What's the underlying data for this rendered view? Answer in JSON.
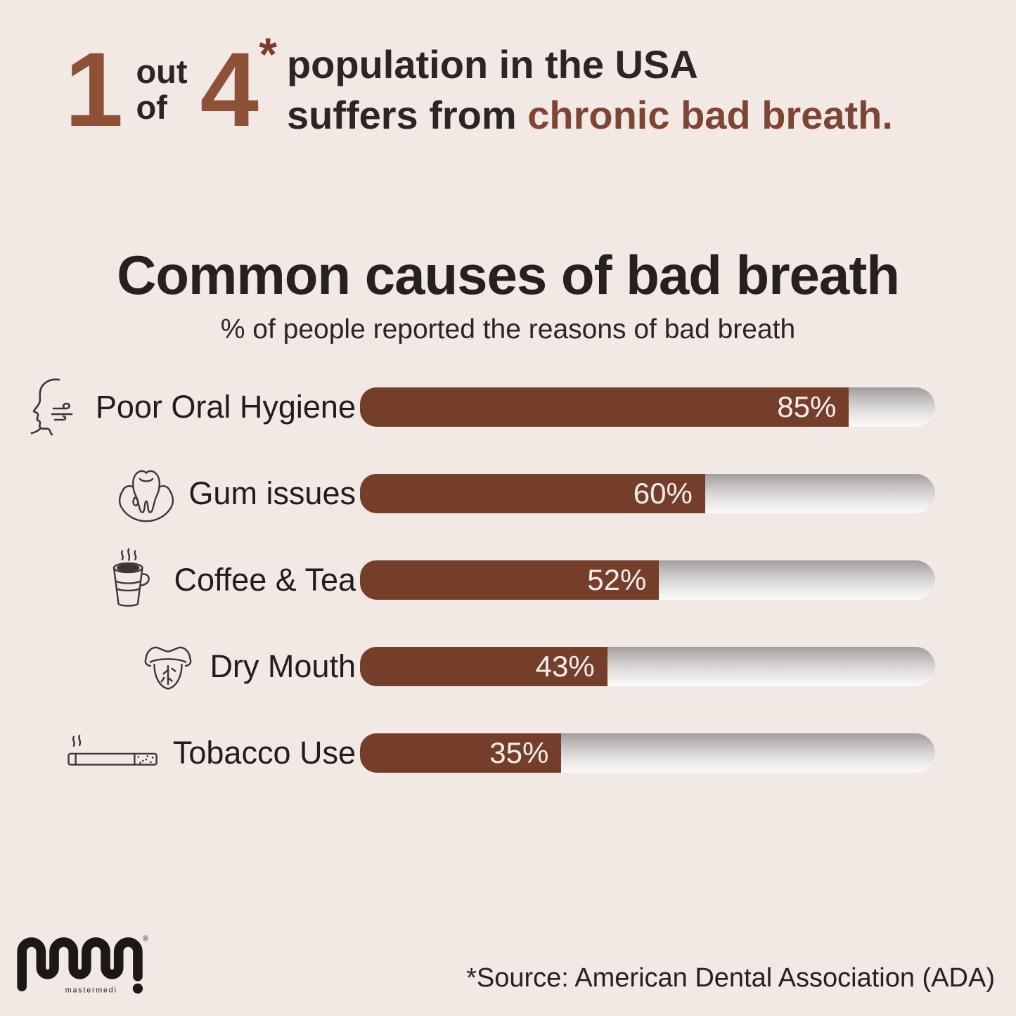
{
  "page": {
    "background": "#f2e9e5"
  },
  "header": {
    "numerator": "1",
    "out_label": "out",
    "of_label": "of",
    "denominator": "4",
    "asterisk": "*",
    "line1": "population in the USA",
    "line2_prefix": "suffers from ",
    "line2_highlight": "chronic bad breath.",
    "number_color": "#8e5138",
    "highlight_color": "#7d4534"
  },
  "chart_data": {
    "type": "bar",
    "orientation": "horizontal",
    "title": "Common causes of bad breath",
    "subtitle": "% of people reported the reasons of bad breath",
    "categories": [
      "Poor Oral Hygiene",
      "Gum issues",
      "Coffee & Tea",
      "Dry Mouth",
      "Tobacco Use"
    ],
    "values": [
      85,
      60,
      52,
      43,
      35
    ],
    "value_labels": [
      "85%",
      "60%",
      "52%",
      "43%",
      "35%"
    ],
    "xlim": [
      0,
      100
    ],
    "grid": false,
    "legend": false,
    "bar_color": "#753e2b",
    "track_gradient": [
      "#a19e9d",
      "#fbf9f8"
    ],
    "value_label_color": "#f7efe9",
    "value_label_position": "inside-end",
    "icons": [
      "breath-face-icon",
      "tooth-gums-icon",
      "coffee-cup-icon",
      "dry-tongue-icon",
      "cigarette-icon"
    ]
  },
  "footer": {
    "logo_text": "mastermedi",
    "registered_mark": "®",
    "source": "*Source: American Dental Association (ADA)"
  }
}
